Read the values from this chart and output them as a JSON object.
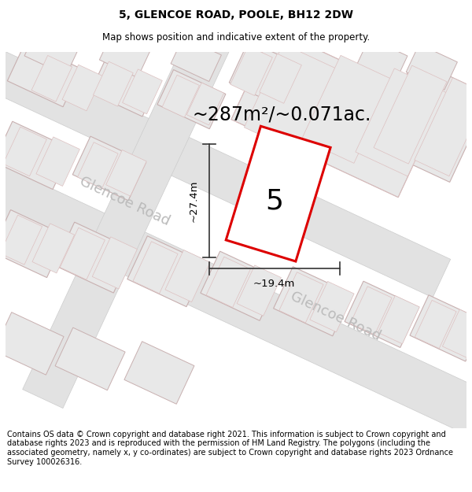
{
  "title": "5, GLENCOE ROAD, POOLE, BH12 2DW",
  "subtitle": "Map shows position and indicative extent of the property.",
  "area_label": "~287m²/~0.071ac.",
  "number_label": "5",
  "dim_width": "~19.4m",
  "dim_height": "~27.4m",
  "road_label1": "Glencoe Road",
  "road_label2": "Glencoe Road",
  "footer_text": "Contains OS data © Crown copyright and database right 2021. This information is subject to Crown copyright and database rights 2023 and is reproduced with the permission of HM Land Registry. The polygons (including the associated geometry, namely x, y co-ordinates) are subject to Crown copyright and database rights 2023 Ordnance Survey 100026316.",
  "map_bg": "#f7f7f7",
  "plot_color": "#dd0000",
  "building_fill": "#e8e8e8",
  "building_stroke_main": "#c8b0b0",
  "building_stroke_inner": "#ddc0c0",
  "road_fill": "#e0e0e0",
  "road_color": "#c0c0c0",
  "road_label_color": "#bbbbbb",
  "title_fontsize": 10,
  "subtitle_fontsize": 8.5,
  "area_fontsize": 17,
  "number_fontsize": 26,
  "footer_fontsize": 7,
  "road_label_fontsize": 13,
  "dim_fontsize": 9.5
}
